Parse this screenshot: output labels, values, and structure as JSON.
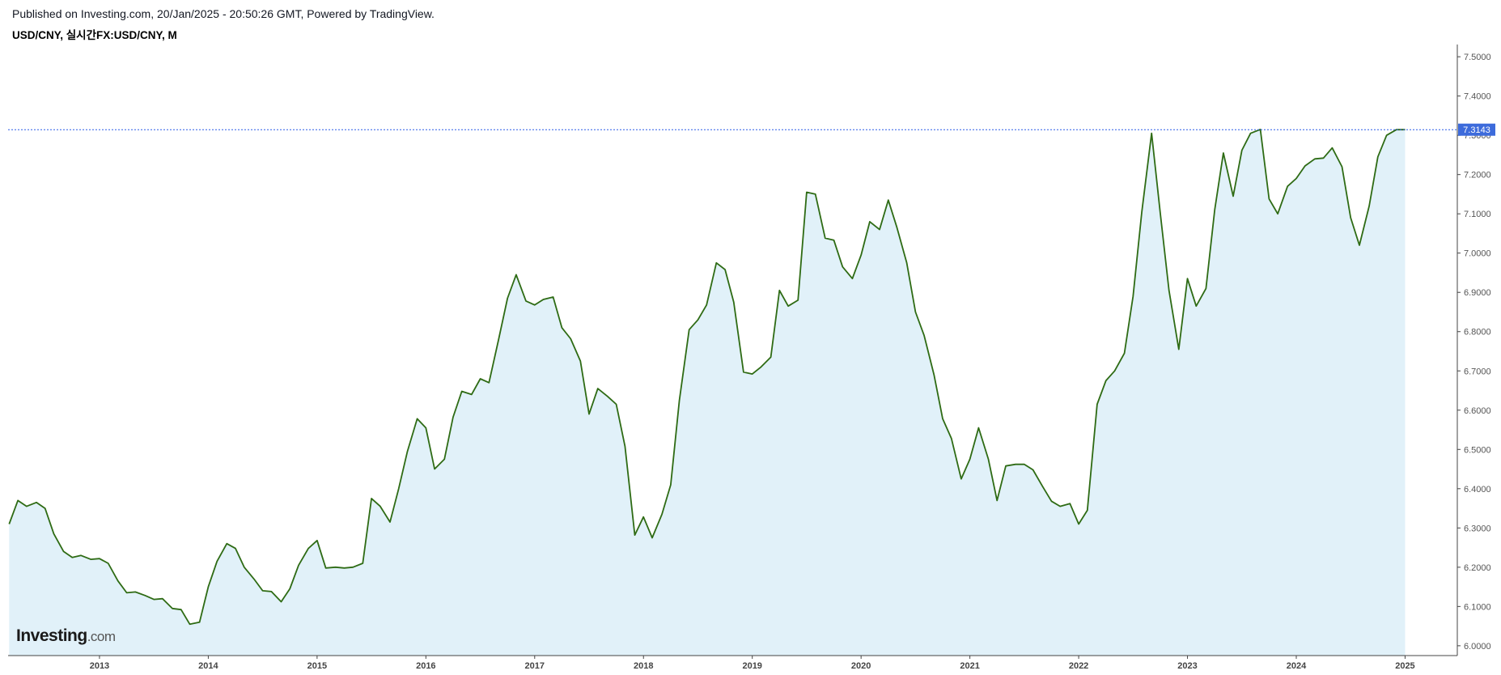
{
  "header": {
    "published": "Published on Investing.com, 20/Jan/2025 - 20:50:26 GMT, Powered by TradingView.",
    "symbol": "USD/CNY, 실시간FX:USD/CNY, M"
  },
  "logo": {
    "name": "Investing",
    "suffix": ".com"
  },
  "colors": {
    "line": "#2e6b14",
    "fill": "#e1f1f9",
    "last_price_line": "#2b5ce8",
    "last_price_badge": "#3d6bdb",
    "axis": "#444444"
  },
  "chart_data": {
    "type": "area",
    "ylim": [
      5.975,
      7.525
    ],
    "xlim": [
      2012.16,
      2025.48
    ],
    "yticks": [
      "6.0000",
      "6.1000",
      "6.2000",
      "6.3000",
      "6.4000",
      "6.5000",
      "6.6000",
      "6.7000",
      "6.8000",
      "6.9000",
      "7.0000",
      "7.1000",
      "7.2000",
      "7.3000",
      "7.4000",
      "7.5000"
    ],
    "xticks": [
      "2013",
      "2014",
      "2015",
      "2016",
      "2017",
      "2018",
      "2019",
      "2020",
      "2021",
      "2022",
      "2023",
      "2024",
      "2025"
    ],
    "last_value": "7.3143",
    "grid": false,
    "series": [
      {
        "x": [
          2012.17,
          2012.25,
          2012.33,
          2012.42,
          2012.5,
          2012.58,
          2012.67,
          2012.75,
          2012.83,
          2012.92,
          2013.0,
          2013.08,
          2013.17,
          2013.25,
          2013.33,
          2013.42,
          2013.5,
          2013.58,
          2013.67,
          2013.75,
          2013.83,
          2013.92,
          2014.0,
          2014.08,
          2014.17,
          2014.25,
          2014.33,
          2014.42,
          2014.5,
          2014.58,
          2014.67,
          2014.75,
          2014.83,
          2014.92,
          2015.0,
          2015.08,
          2015.17,
          2015.25,
          2015.33,
          2015.42,
          2015.5,
          2015.58,
          2015.67,
          2015.75,
          2015.83,
          2015.92,
          2016.0,
          2016.08,
          2016.17,
          2016.25,
          2016.33,
          2016.42,
          2016.5,
          2016.58,
          2016.67,
          2016.75,
          2016.83,
          2016.92,
          2017.0,
          2017.08,
          2017.17,
          2017.25,
          2017.33,
          2017.42,
          2017.5,
          2017.58,
          2017.67,
          2017.75,
          2017.83,
          2017.92,
          2018.0,
          2018.08,
          2018.17,
          2018.25,
          2018.33,
          2018.42,
          2018.5,
          2018.58,
          2018.67,
          2018.75,
          2018.83,
          2018.92,
          2019.0,
          2019.08,
          2019.17,
          2019.25,
          2019.33,
          2019.42,
          2019.5,
          2019.58,
          2019.67,
          2019.75,
          2019.83,
          2019.92,
          2020.0,
          2020.08,
          2020.17,
          2020.25,
          2020.33,
          2020.42,
          2020.5,
          2020.58,
          2020.67,
          2020.75,
          2020.83,
          2020.92,
          2021.0,
          2021.08,
          2021.17,
          2021.25,
          2021.33,
          2021.42,
          2021.5,
          2021.58,
          2021.67,
          2021.75,
          2021.83,
          2021.92,
          2022.0,
          2022.08,
          2022.17,
          2022.25,
          2022.33,
          2022.42,
          2022.5,
          2022.58,
          2022.67,
          2022.75,
          2022.83,
          2022.92,
          2023.0,
          2023.08,
          2023.17,
          2023.25,
          2023.33,
          2023.42,
          2023.5,
          2023.58,
          2023.67,
          2023.75,
          2023.83,
          2023.92,
          2024.0,
          2024.08,
          2024.17,
          2024.25,
          2024.33,
          2024.42,
          2024.5,
          2024.58,
          2024.67,
          2024.75,
          2024.83,
          2024.92,
          2025.0
        ],
        "values": [
          6.31,
          6.37,
          6.355,
          6.365,
          6.35,
          6.285,
          6.24,
          6.225,
          6.23,
          6.22,
          6.222,
          6.21,
          6.165,
          6.135,
          6.137,
          6.128,
          6.118,
          6.12,
          6.095,
          6.092,
          6.055,
          6.06,
          6.15,
          6.215,
          6.26,
          6.248,
          6.2,
          6.17,
          6.14,
          6.138,
          6.112,
          6.145,
          6.205,
          6.248,
          6.268,
          6.198,
          6.2,
          6.198,
          6.2,
          6.21,
          6.375,
          6.355,
          6.315,
          6.4,
          6.495,
          6.578,
          6.555,
          6.45,
          6.475,
          6.582,
          6.648,
          6.64,
          6.68,
          6.67,
          6.782,
          6.885,
          6.945,
          6.878,
          6.868,
          6.882,
          6.888,
          6.81,
          6.782,
          6.725,
          6.59,
          6.655,
          6.635,
          6.615,
          6.508,
          6.282,
          6.328,
          6.275,
          6.335,
          6.41,
          6.625,
          6.805,
          6.83,
          6.868,
          6.975,
          6.958,
          6.875,
          6.697,
          6.692,
          6.71,
          6.735,
          6.905,
          6.865,
          6.88,
          7.155,
          7.15,
          7.038,
          7.033,
          6.965,
          6.935,
          6.995,
          7.08,
          7.06,
          7.135,
          7.065,
          6.975,
          6.85,
          6.79,
          6.69,
          6.578,
          6.528,
          6.425,
          6.475,
          6.555,
          6.475,
          6.37,
          6.458,
          6.462,
          6.462,
          6.448,
          6.405,
          6.368,
          6.355,
          6.362,
          6.31,
          6.345,
          6.615,
          6.675,
          6.7,
          6.745,
          6.89,
          7.105,
          7.305,
          7.102,
          6.905,
          6.755,
          6.935,
          6.865,
          6.91,
          7.11,
          7.255,
          7.145,
          7.262,
          7.305,
          7.315,
          7.138,
          7.1,
          7.17,
          7.19,
          7.222,
          7.24,
          7.242,
          7.268,
          7.22,
          7.09,
          7.02,
          7.12,
          7.245,
          7.3,
          7.3143,
          7.3143
        ]
      }
    ]
  }
}
